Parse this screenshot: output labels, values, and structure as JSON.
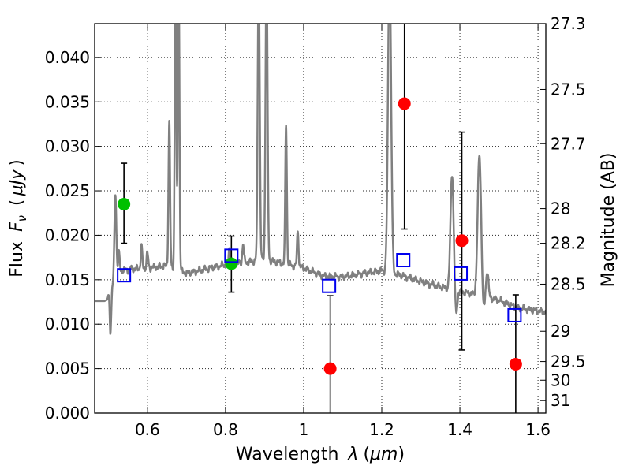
{
  "chart_data": {
    "type": "scatter",
    "xlabel_text": "Wavelength",
    "xlabel_symbol": "λ",
    "xlabel_unit": "μm",
    "ylabel_text": "Flux",
    "ylabel_symbol": "F",
    "ylabel_subscript": "ν",
    "ylabel_unit": "μJy",
    "y2label": "Magnitude (AB)",
    "xlim": [
      0.465,
      1.62
    ],
    "ylim": [
      0.0,
      0.0438
    ],
    "x_ticks": [
      0.6,
      0.8,
      1.0,
      1.2,
      1.4,
      1.6
    ],
    "x_tick_labels": [
      "0.6",
      "0.8",
      "1",
      "1.2",
      "1.4",
      "1.6"
    ],
    "y_ticks": [
      0.0,
      0.005,
      0.01,
      0.015,
      0.02,
      0.025,
      0.03,
      0.035,
      0.04
    ],
    "y_tick_labels": [
      "0.000",
      "0.005",
      "0.010",
      "0.015",
      "0.020",
      "0.025",
      "0.030",
      "0.035",
      "0.040"
    ],
    "y2_ticks": [
      {
        "mag": "27.3",
        "flux": 0.0438
      },
      {
        "mag": "27.5",
        "flux": 0.0364
      },
      {
        "mag": "27.7",
        "flux": 0.0303
      },
      {
        "mag": "28",
        "flux": 0.023
      },
      {
        "mag": "28.2",
        "flux": 0.0191
      },
      {
        "mag": "28.5",
        "flux": 0.0145
      },
      {
        "mag": "29",
        "flux": 0.0092
      },
      {
        "mag": "29.5",
        "flux": 0.0058
      },
      {
        "mag": "30",
        "flux": 0.0037
      },
      {
        "mag": "31",
        "flux": 0.0014
      }
    ],
    "grid": true,
    "model_spectrum": {
      "name": "model SED",
      "color": "#808080",
      "continuum": [
        [
          0.465,
          0.0126
        ],
        [
          0.49,
          0.0126
        ],
        [
          0.5,
          0.0128
        ],
        [
          0.505,
          0.011
        ],
        [
          0.51,
          0.0142
        ],
        [
          0.53,
          0.016
        ],
        [
          0.56,
          0.0162
        ],
        [
          0.6,
          0.0163
        ],
        [
          0.65,
          0.0166
        ],
        [
          0.7,
          0.0157
        ],
        [
          0.75,
          0.0162
        ],
        [
          0.8,
          0.0167
        ],
        [
          0.86,
          0.017
        ],
        [
          0.9,
          0.0173
        ],
        [
          0.95,
          0.0168
        ],
        [
          1.0,
          0.0163
        ],
        [
          1.05,
          0.0154
        ],
        [
          1.1,
          0.0153
        ],
        [
          1.15,
          0.0157
        ],
        [
          1.2,
          0.016
        ],
        [
          1.25,
          0.0155
        ],
        [
          1.3,
          0.0148
        ],
        [
          1.35,
          0.0142
        ],
        [
          1.4,
          0.0137
        ],
        [
          1.45,
          0.0132
        ],
        [
          1.5,
          0.0127
        ],
        [
          1.55,
          0.0118
        ],
        [
          1.6,
          0.0115
        ],
        [
          1.62,
          0.0114
        ]
      ],
      "emission_lines": [
        {
          "x": 0.502,
          "peak": 0.0138,
          "w": 0.002
        },
        {
          "x": 0.518,
          "peak": 0.0245,
          "w": 0.0025
        },
        {
          "x": 0.527,
          "peak": 0.018,
          "w": 0.002
        },
        {
          "x": 0.585,
          "peak": 0.0187,
          "w": 0.002
        },
        {
          "x": 0.6,
          "peak": 0.018,
          "w": 0.002
        },
        {
          "x": 0.656,
          "peak": 0.0327,
          "w": 0.002
        },
        {
          "x": 0.672,
          "peak": 0.05,
          "w": 0.002
        },
        {
          "x": 0.68,
          "peak": 0.05,
          "w": 0.002
        },
        {
          "x": 0.81,
          "peak": 0.0185,
          "w": 0.002
        },
        {
          "x": 0.845,
          "peak": 0.019,
          "w": 0.002
        },
        {
          "x": 0.885,
          "peak": 0.05,
          "w": 0.0025
        },
        {
          "x": 0.905,
          "peak": 0.05,
          "w": 0.0025
        },
        {
          "x": 0.955,
          "peak": 0.0325,
          "w": 0.002
        },
        {
          "x": 0.985,
          "peak": 0.0205,
          "w": 0.002
        },
        {
          "x": 1.22,
          "peak": 0.05,
          "w": 0.004
        },
        {
          "x": 1.38,
          "peak": 0.027,
          "w": 0.004
        },
        {
          "x": 1.45,
          "peak": 0.029,
          "w": 0.0045
        },
        {
          "x": 1.47,
          "peak": 0.016,
          "w": 0.003
        }
      ],
      "troughs": [
        {
          "x": 0.505,
          "depth": 0.003,
          "w": 0.002
        },
        {
          "x": 1.39,
          "depth": 0.003,
          "w": 0.003
        },
        {
          "x": 1.46,
          "depth": 0.002,
          "w": 0.003
        }
      ]
    },
    "series": [
      {
        "name": "green detections",
        "marker": "circle",
        "color": "#00c000",
        "points": [
          {
            "x": 0.54,
            "y": 0.0235,
            "ylo": 0.0191,
            "yhi": 0.0281
          },
          {
            "x": 0.815,
            "y": 0.0168,
            "ylo": 0.0136,
            "yhi": 0.0199
          }
        ]
      },
      {
        "name": "red measurements",
        "marker": "circle",
        "color": "#ff0000",
        "points": [
          {
            "x": 1.068,
            "y": 0.005,
            "ylo": 0.0,
            "yhi": 0.0132
          },
          {
            "x": 1.258,
            "y": 0.0348,
            "ylo": 0.0207,
            "yhi": 0.0438
          },
          {
            "x": 1.405,
            "y": 0.0194,
            "ylo": 0.0071,
            "yhi": 0.0316
          },
          {
            "x": 1.543,
            "y": 0.0055,
            "ylo": 0.0,
            "yhi": 0.0133
          }
        ]
      },
      {
        "name": "model photometry",
        "marker": "square",
        "color": "#0000ee",
        "points": [
          {
            "x": 0.54,
            "y": 0.0155
          },
          {
            "x": 0.815,
            "y": 0.0177
          },
          {
            "x": 1.065,
            "y": 0.0143
          },
          {
            "x": 1.255,
            "y": 0.0172
          },
          {
            "x": 1.402,
            "y": 0.0157
          },
          {
            "x": 1.54,
            "y": 0.011
          }
        ]
      }
    ]
  }
}
